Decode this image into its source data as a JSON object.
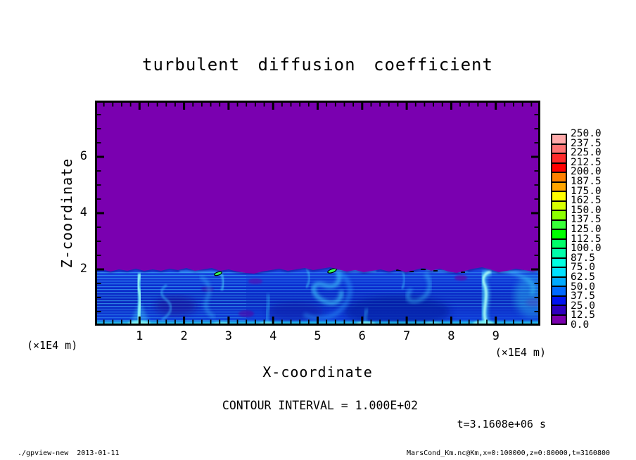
{
  "title": "turbulent diffusion coefficient",
  "chart_data": {
    "type": "heatmap",
    "title": "turbulent diffusion coefficient",
    "xlabel": "X-coordinate",
    "ylabel": "Z-coordinate",
    "x_unit_label": "(×1E4 m)",
    "y_unit_label": "(×1E4 m)",
    "axes": {
      "x": {
        "range": [
          0,
          10
        ],
        "ticks": [
          1,
          2,
          3,
          4,
          5,
          6,
          7,
          8,
          9
        ],
        "minor_step": 0.2
      },
      "z": {
        "range": [
          0,
          8
        ],
        "ticks": [
          2,
          4,
          6
        ],
        "minor_step": 0.5
      }
    },
    "contour_interval_label": "CONTOUR INTERVAL = 1.000E+02",
    "time_label": "t=3.1608e+06 s",
    "colorbar": {
      "labels_top_to_bottom": [
        "250.0",
        "237.5",
        "225.0",
        "212.5",
        "200.0",
        "187.5",
        "175.0",
        "162.5",
        "150.0",
        "137.5",
        "125.0",
        "112.5",
        "100.0",
        "87.5",
        "75.0",
        "62.5",
        "50.0",
        "37.5",
        "25.0",
        "12.5",
        "0.0"
      ],
      "colors_top_to_bottom": [
        "#ffaaaa",
        "#ff7373",
        "#ff2b2b",
        "#ff0000",
        "#ff8000",
        "#ffa500",
        "#ffff00",
        "#d7ff00",
        "#8cff00",
        "#37ff37",
        "#00ff00",
        "#00ff69",
        "#00ffaa",
        "#00ffe1",
        "#00e1ff",
        "#00aaff",
        "#0069ff",
        "#0014f0",
        "#2e00be",
        "#7a00ae"
      ]
    },
    "field": {
      "zero_value_color": "#7a00b0",
      "summary": "value 0.0 (purple) everywhere above z≈2×1E4 m; turbulent mixed layer with values ≈12.5–100 (blue/cyan plumes and swirls) between z=0 and z≈2, plumes near x≈1, 3, 4.7, 6.3, 7, 8.7 (×1E4 m)"
    }
  },
  "footer": {
    "left": "./gpview-new  2013-01-11",
    "right": "MarsCond_Km.nc@Km,x=0:100000,z=0:80000,t=3160800"
  }
}
